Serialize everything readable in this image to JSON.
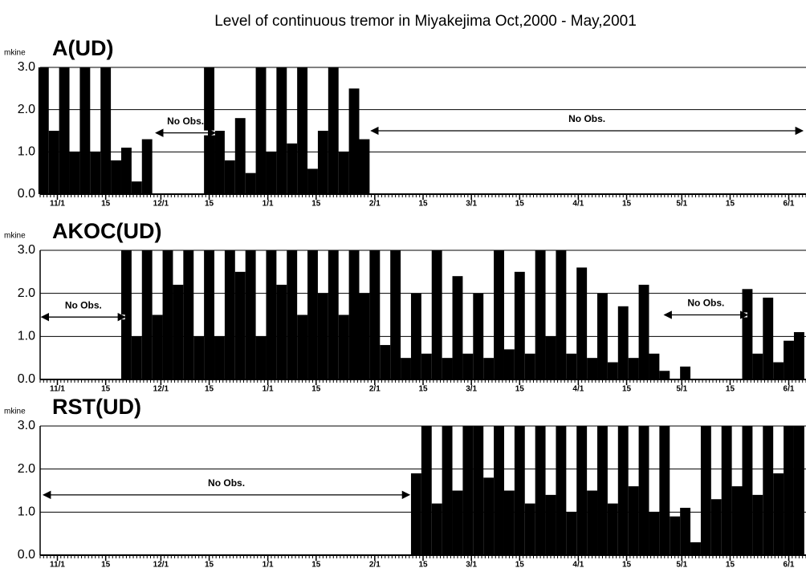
{
  "title": "Level of continuous tremor in Miyakejima Oct,2000 - May,2001",
  "chart_data": [
    {
      "type": "bar",
      "title": "A(UD)",
      "y_label": "mkine",
      "color": "#000000",
      "grid": true,
      "ylim": [
        0,
        3
      ],
      "yticks": [
        {
          "value": 0,
          "label": "0.0"
        },
        {
          "value": 1,
          "label": "1.0"
        },
        {
          "value": 2,
          "label": "2.0"
        },
        {
          "value": 3,
          "label": "3.0"
        }
      ],
      "xlim": [
        -5,
        217
      ],
      "xticks": [
        {
          "value": 0,
          "label": "11/1"
        },
        {
          "value": 14,
          "label": "15"
        },
        {
          "value": 30,
          "label": "12/1"
        },
        {
          "value": 44,
          "label": "15"
        },
        {
          "value": 61,
          "label": "1/1"
        },
        {
          "value": 75,
          "label": "15"
        },
        {
          "value": 92,
          "label": "2/1"
        },
        {
          "value": 106,
          "label": "15"
        },
        {
          "value": 120,
          "label": "3/1"
        },
        {
          "value": 134,
          "label": "15"
        },
        {
          "value": 151,
          "label": "4/1"
        },
        {
          "value": 165,
          "label": "15"
        },
        {
          "value": 181,
          "label": "5/1"
        },
        {
          "value": 195,
          "label": "15"
        },
        {
          "value": 212,
          "label": "6/1"
        }
      ],
      "x": [
        -4,
        -1,
        2,
        5,
        8,
        11,
        14,
        17,
        20,
        23,
        26,
        29,
        32,
        35,
        38,
        41,
        44,
        47,
        50,
        53,
        56,
        59,
        62,
        65,
        68,
        71,
        74,
        77,
        80,
        83,
        86,
        89,
        92,
        95,
        98,
        101,
        104,
        107,
        110,
        113,
        116,
        119,
        122,
        125,
        128,
        131,
        134,
        137,
        140,
        143,
        146,
        149,
        152,
        155,
        158,
        161,
        164,
        167,
        170,
        173,
        176,
        179,
        182,
        185,
        188,
        191,
        194,
        197,
        200,
        203,
        206,
        209,
        212,
        215
      ],
      "values": [
        3.0,
        1.5,
        3.0,
        1.0,
        3.0,
        1.0,
        3.0,
        0.8,
        1.1,
        0.3,
        1.3,
        null,
        null,
        null,
        null,
        null,
        3.0,
        1.5,
        0.8,
        1.8,
        0.5,
        3.0,
        1.0,
        3.0,
        1.2,
        3.0,
        0.6,
        1.5,
        3.0,
        1.0,
        2.5,
        1.3,
        null,
        null,
        null,
        null,
        null,
        null,
        null,
        null,
        null,
        null,
        null,
        null,
        null,
        null,
        null,
        null,
        null,
        null,
        null,
        null,
        null,
        null,
        null,
        null,
        null,
        null,
        null,
        null,
        null,
        null,
        null,
        null,
        null,
        null,
        null,
        null,
        null,
        null,
        null,
        null,
        null,
        null
      ],
      "annotations": [
        {
          "text": "No Obs.",
          "x": [
            28.6,
            45.7
          ],
          "y": 1.45
        },
        {
          "text": "No Obs.",
          "x": [
            91,
            216
          ],
          "y": 1.5
        }
      ]
    },
    {
      "type": "bar",
      "title": "AKOC(UD)",
      "y_label": "mkine",
      "color": "#000000",
      "grid": true,
      "ylim": [
        0,
        3
      ],
      "yticks": [
        {
          "value": 0,
          "label": "0.0"
        },
        {
          "value": 1,
          "label": "1.0"
        },
        {
          "value": 2,
          "label": "2.0"
        },
        {
          "value": 3,
          "label": "3.0"
        }
      ],
      "xlim": [
        -5,
        217
      ],
      "xticks": [
        {
          "value": 0,
          "label": "11/1"
        },
        {
          "value": 14,
          "label": "15"
        },
        {
          "value": 30,
          "label": "12/1"
        },
        {
          "value": 44,
          "label": "15"
        },
        {
          "value": 61,
          "label": "1/1"
        },
        {
          "value": 75,
          "label": "15"
        },
        {
          "value": 92,
          "label": "2/1"
        },
        {
          "value": 106,
          "label": "15"
        },
        {
          "value": 120,
          "label": "3/1"
        },
        {
          "value": 134,
          "label": "15"
        },
        {
          "value": 151,
          "label": "4/1"
        },
        {
          "value": 165,
          "label": "15"
        },
        {
          "value": 181,
          "label": "5/1"
        },
        {
          "value": 195,
          "label": "15"
        },
        {
          "value": 212,
          "label": "6/1"
        }
      ],
      "x": [
        -4,
        -1,
        2,
        5,
        8,
        11,
        14,
        17,
        20,
        23,
        26,
        29,
        32,
        35,
        38,
        41,
        44,
        47,
        50,
        53,
        56,
        59,
        62,
        65,
        68,
        71,
        74,
        77,
        80,
        83,
        86,
        89,
        92,
        95,
        98,
        101,
        104,
        107,
        110,
        113,
        116,
        119,
        122,
        125,
        128,
        131,
        134,
        137,
        140,
        143,
        146,
        149,
        152,
        155,
        158,
        161,
        164,
        167,
        170,
        173,
        176,
        179,
        182,
        185,
        188,
        191,
        194,
        197,
        200,
        203,
        206,
        209,
        212,
        215
      ],
      "values": [
        null,
        null,
        null,
        null,
        null,
        null,
        null,
        null,
        3.0,
        1.0,
        3.0,
        1.5,
        3.0,
        2.2,
        3.0,
        1.0,
        3.0,
        1.0,
        3.0,
        2.5,
        3.0,
        1.0,
        3.0,
        2.2,
        3.0,
        1.5,
        3.0,
        2.0,
        3.0,
        1.5,
        3.0,
        2.0,
        3.0,
        0.8,
        3.0,
        0.5,
        2.0,
        0.6,
        3.0,
        0.5,
        2.4,
        0.6,
        2.0,
        0.5,
        3.0,
        0.7,
        2.5,
        0.6,
        3.0,
        1.0,
        3.0,
        0.6,
        2.6,
        0.5,
        2.0,
        0.4,
        1.7,
        0.5,
        2.2,
        0.6,
        0.2,
        null,
        0.3,
        null,
        null,
        null,
        null,
        null,
        2.1,
        0.6,
        1.9,
        0.4,
        0.9,
        1.1
      ],
      "annotations": [
        {
          "text": "No Obs.",
          "x": [
            -5,
            19.6
          ],
          "y": 1.45
        },
        {
          "text": "No Obs.",
          "x": [
            176,
            200
          ],
          "y": 1.5
        }
      ]
    },
    {
      "type": "bar",
      "title": "RST(UD)",
      "y_label": "mkine",
      "color": "#000000",
      "grid": true,
      "ylim": [
        0,
        3
      ],
      "yticks": [
        {
          "value": 0,
          "label": "0.0"
        },
        {
          "value": 1,
          "label": "1.0"
        },
        {
          "value": 2,
          "label": "2.0"
        },
        {
          "value": 3,
          "label": "3.0"
        }
      ],
      "xlim": [
        -5,
        217
      ],
      "xticks": [
        {
          "value": 0,
          "label": "11/1"
        },
        {
          "value": 14,
          "label": "15"
        },
        {
          "value": 30,
          "label": "12/1"
        },
        {
          "value": 44,
          "label": "15"
        },
        {
          "value": 61,
          "label": "1/1"
        },
        {
          "value": 75,
          "label": "15"
        },
        {
          "value": 92,
          "label": "2/1"
        },
        {
          "value": 106,
          "label": "15"
        },
        {
          "value": 120,
          "label": "3/1"
        },
        {
          "value": 134,
          "label": "15"
        },
        {
          "value": 151,
          "label": "4/1"
        },
        {
          "value": 165,
          "label": "15"
        },
        {
          "value": 181,
          "label": "5/1"
        },
        {
          "value": 195,
          "label": "15"
        },
        {
          "value": 212,
          "label": "6/1"
        }
      ],
      "x": [
        -4,
        -1,
        2,
        5,
        8,
        11,
        14,
        17,
        20,
        23,
        26,
        29,
        32,
        35,
        38,
        41,
        44,
        47,
        50,
        53,
        56,
        59,
        62,
        65,
        68,
        71,
        74,
        77,
        80,
        83,
        86,
        89,
        92,
        95,
        98,
        101,
        104,
        107,
        110,
        113,
        116,
        119,
        122,
        125,
        128,
        131,
        134,
        137,
        140,
        143,
        146,
        149,
        152,
        155,
        158,
        161,
        164,
        167,
        170,
        173,
        176,
        179,
        182,
        185,
        188,
        191,
        194,
        197,
        200,
        203,
        206,
        209,
        212,
        215
      ],
      "values": [
        null,
        null,
        null,
        null,
        null,
        null,
        null,
        null,
        null,
        null,
        null,
        null,
        null,
        null,
        null,
        null,
        null,
        null,
        null,
        null,
        null,
        null,
        null,
        null,
        null,
        null,
        null,
        null,
        null,
        null,
        null,
        null,
        null,
        null,
        null,
        null,
        1.9,
        3.0,
        1.2,
        3.0,
        1.5,
        3.0,
        3.0,
        1.8,
        3.0,
        1.5,
        3.0,
        1.2,
        3.0,
        1.4,
        3.0,
        1.0,
        3.0,
        1.5,
        3.0,
        1.2,
        3.0,
        1.6,
        3.0,
        1.0,
        3.0,
        0.9,
        1.1,
        0.3,
        3.0,
        1.3,
        3.0,
        1.6,
        3.0,
        1.4,
        3.0,
        1.9,
        3.0,
        3.0
      ],
      "annotations": [
        {
          "text": "No Obs.",
          "x": [
            -4,
            102
          ],
          "y": 1.4
        }
      ]
    }
  ]
}
